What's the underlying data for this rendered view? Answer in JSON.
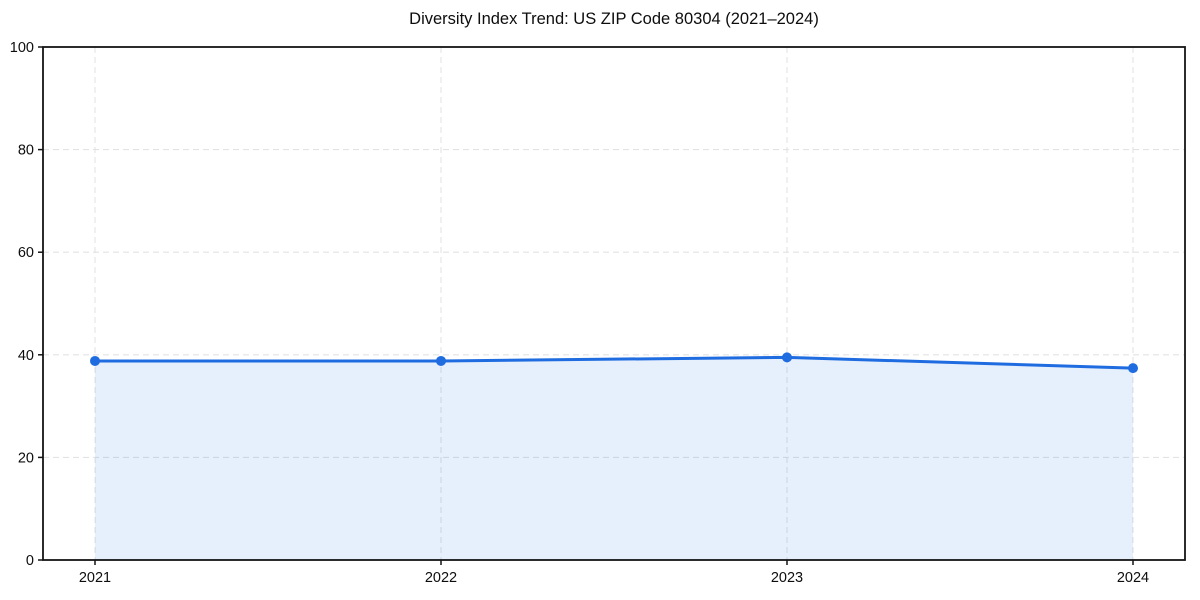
{
  "chart_data": {
    "type": "line",
    "title": "Diversity Index Trend: US ZIP Code 80304 (2021–2024)",
    "categories": [
      "2021",
      "2022",
      "2023",
      "2024"
    ],
    "values": [
      38.8,
      38.8,
      39.5,
      37.4
    ],
    "xlabel": "",
    "ylabel": "",
    "ylim": [
      0,
      100
    ],
    "yticks": [
      0,
      20,
      40,
      60,
      80,
      100
    ],
    "grid": true,
    "grid_style": "dashed",
    "legend": "none",
    "area_fill": true,
    "marker": "circle",
    "line_color": "#1f6ce0",
    "marker_color": "#1f6ce0",
    "fill_color": "#1f6ce0",
    "fill_opacity": 0.11,
    "grid_color": "#e3e3e3",
    "axis_color": "#141414",
    "tick_label_color": "#0d0d0d",
    "background_color": "#ffffff"
  }
}
